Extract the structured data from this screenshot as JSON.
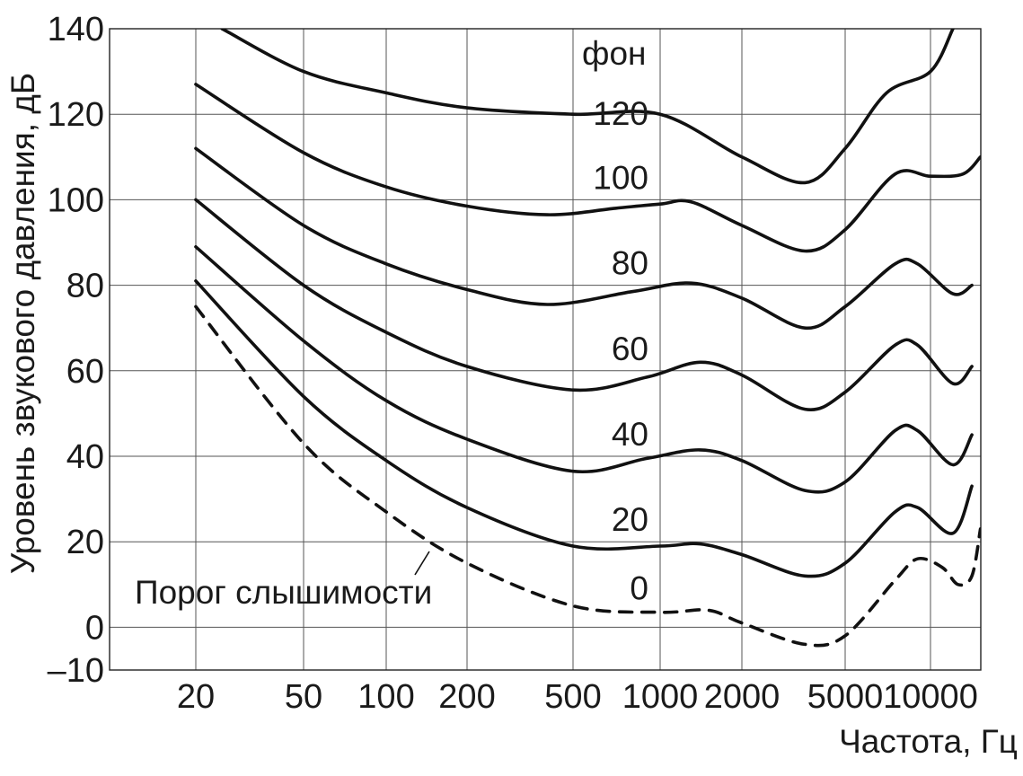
{
  "chart_data": {
    "type": "line",
    "title": "",
    "xlabel": "Частота, Гц",
    "ylabel": "Уровень звукового давления, дБ",
    "x_scale": "log",
    "x_ticks": [
      "20",
      "50",
      "100",
      "200",
      "500",
      "1000",
      "2000",
      "5000",
      "10000"
    ],
    "y_ticks": [
      "140",
      "120",
      "100",
      "80",
      "60",
      "40",
      "20",
      "0",
      "–10"
    ],
    "ylim": [
      -10,
      140
    ],
    "grid": true,
    "unit_label": "фон",
    "threshold_label": "Порог слышимости",
    "series": [
      {
        "name": "120",
        "dashed": false,
        "points": [
          [
            25,
            140
          ],
          [
            50,
            130
          ],
          [
            100,
            125
          ],
          [
            200,
            121.5
          ],
          [
            500,
            120
          ],
          [
            1000,
            120
          ],
          [
            2000,
            110
          ],
          [
            3500,
            104
          ],
          [
            5000,
            112
          ],
          [
            7000,
            125
          ],
          [
            10000,
            130
          ],
          [
            12000,
            140
          ]
        ]
      },
      {
        "name": "100",
        "dashed": false,
        "points": [
          [
            20,
            127
          ],
          [
            50,
            111
          ],
          [
            100,
            103
          ],
          [
            200,
            98.5
          ],
          [
            400,
            96.5
          ],
          [
            700,
            98
          ],
          [
            1000,
            99
          ],
          [
            1300,
            99.5
          ],
          [
            2000,
            94
          ],
          [
            3500,
            88
          ],
          [
            5000,
            93
          ],
          [
            7500,
            106
          ],
          [
            10000,
            105.5
          ],
          [
            13000,
            106
          ],
          [
            15000,
            110
          ]
        ]
      },
      {
        "name": "80",
        "dashed": false,
        "points": [
          [
            20,
            112
          ],
          [
            50,
            94
          ],
          [
            100,
            85
          ],
          [
            200,
            79
          ],
          [
            400,
            75.5
          ],
          [
            800,
            78.5
          ],
          [
            1300,
            80.5
          ],
          [
            2000,
            77
          ],
          [
            3500,
            70
          ],
          [
            5000,
            75
          ],
          [
            7500,
            85
          ],
          [
            9000,
            85
          ],
          [
            12000,
            78
          ],
          [
            14000,
            80
          ]
        ]
      },
      {
        "name": "60",
        "dashed": false,
        "points": [
          [
            20,
            100
          ],
          [
            50,
            80
          ],
          [
            100,
            69
          ],
          [
            200,
            61
          ],
          [
            500,
            55.5
          ],
          [
            900,
            58.5
          ],
          [
            1400,
            62
          ],
          [
            2000,
            59
          ],
          [
            3500,
            51
          ],
          [
            5000,
            55
          ],
          [
            7500,
            66
          ],
          [
            9000,
            66
          ],
          [
            12000,
            57
          ],
          [
            14000,
            61
          ]
        ]
      },
      {
        "name": "40",
        "dashed": false,
        "points": [
          [
            20,
            89
          ],
          [
            50,
            67
          ],
          [
            100,
            53
          ],
          [
            200,
            44
          ],
          [
            500,
            36.5
          ],
          [
            900,
            39.5
          ],
          [
            1400,
            41.5
          ],
          [
            2000,
            39
          ],
          [
            3500,
            32
          ],
          [
            5000,
            34
          ],
          [
            7500,
            46
          ],
          [
            9000,
            46
          ],
          [
            12000,
            38
          ],
          [
            14000,
            45
          ]
        ]
      },
      {
        "name": "20",
        "dashed": false,
        "points": [
          [
            20,
            81
          ],
          [
            50,
            54
          ],
          [
            100,
            39
          ],
          [
            200,
            28
          ],
          [
            500,
            19
          ],
          [
            1000,
            19
          ],
          [
            1400,
            19.5
          ],
          [
            2000,
            17
          ],
          [
            3500,
            12
          ],
          [
            5000,
            15
          ],
          [
            7500,
            27
          ],
          [
            9000,
            28
          ],
          [
            12000,
            22
          ],
          [
            14000,
            33
          ]
        ]
      },
      {
        "name": "0",
        "dashed": true,
        "points": [
          [
            20,
            75
          ],
          [
            50,
            43
          ],
          [
            100,
            27
          ],
          [
            200,
            15
          ],
          [
            500,
            5
          ],
          [
            1000,
            3.5
          ],
          [
            1500,
            4
          ],
          [
            2000,
            1
          ],
          [
            3500,
            -4
          ],
          [
            5000,
            -2
          ],
          [
            7500,
            11
          ],
          [
            9000,
            16
          ],
          [
            11000,
            14
          ],
          [
            12500,
            10
          ],
          [
            14000,
            12
          ],
          [
            15000,
            23
          ]
        ]
      }
    ]
  }
}
